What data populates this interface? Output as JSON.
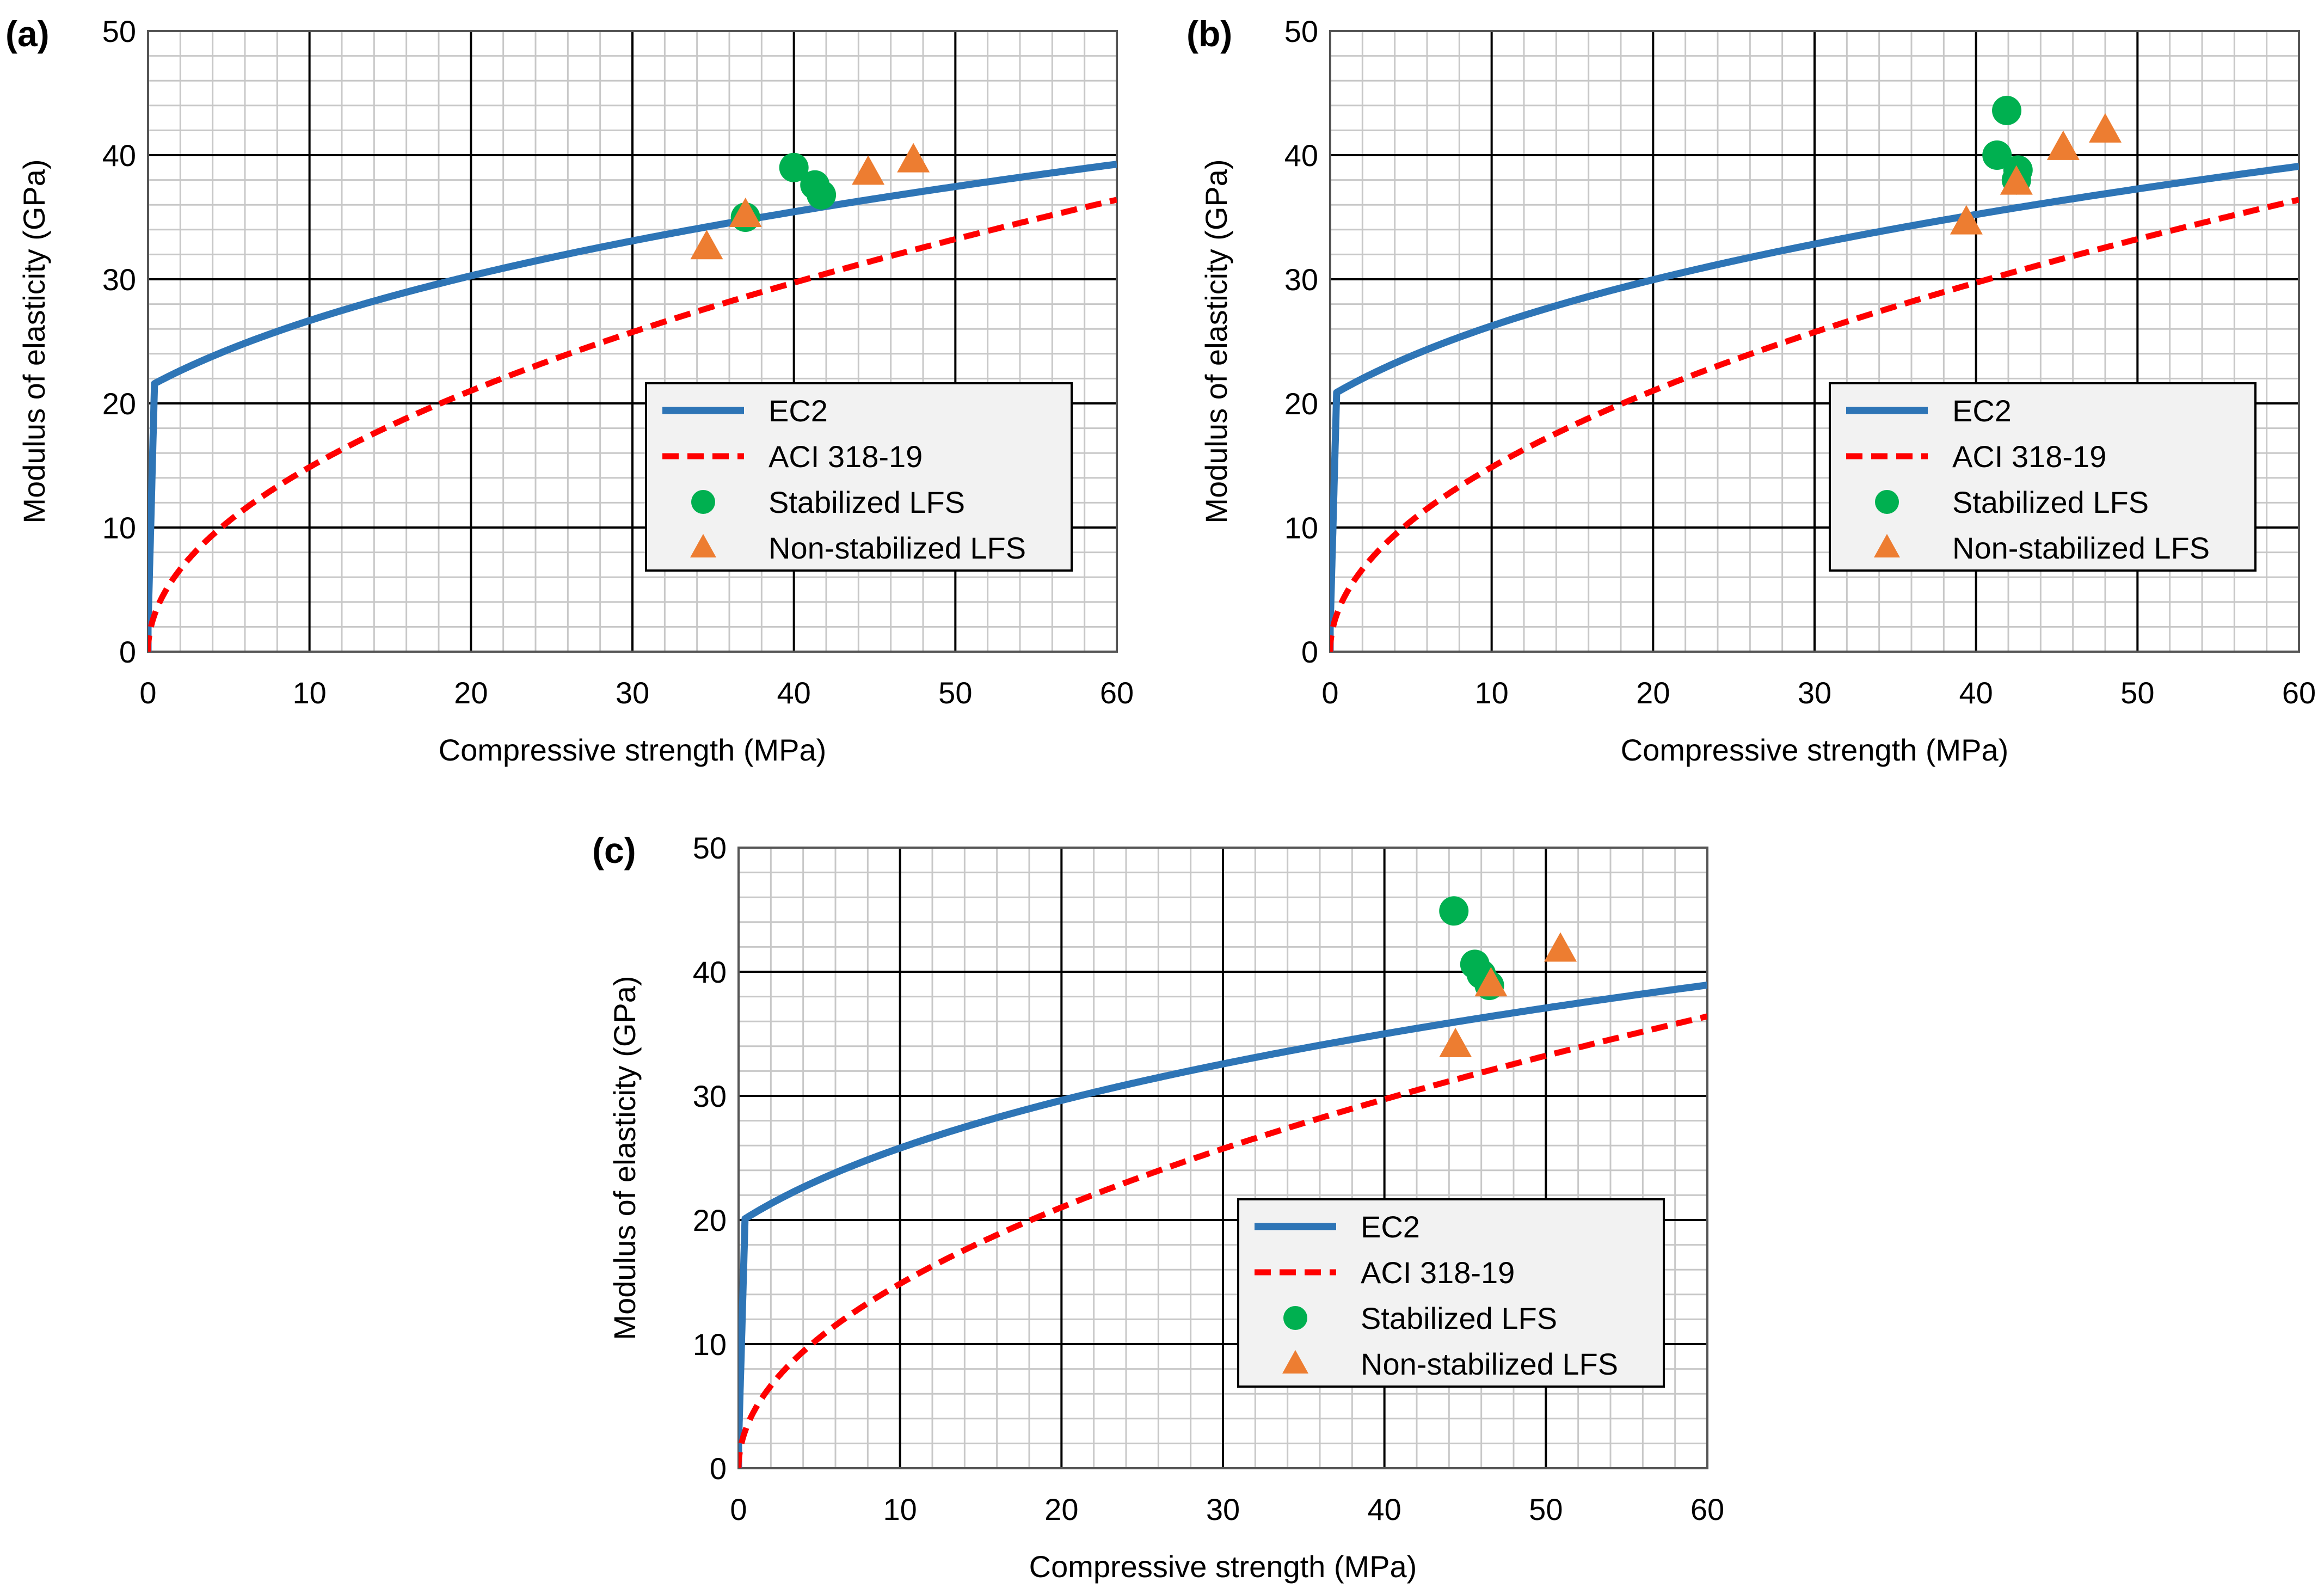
{
  "figure": {
    "panels_meta": "three panels (a), (b), (c)"
  },
  "chart_data": [
    {
      "type": "scatter",
      "panel_label": "(a)",
      "xlabel": "Compressive strength (MPa)",
      "ylabel": "Modulus of elasticity (GPa)",
      "xlim": [
        0,
        60
      ],
      "ylim": [
        0,
        50
      ],
      "xticks": [
        "0",
        "10",
        "20",
        "30",
        "40",
        "50",
        "60"
      ],
      "yticks": [
        "0",
        "10",
        "20",
        "30",
        "40",
        "50"
      ],
      "grid": "major and minor",
      "legend_position": "right",
      "series": [
        {
          "name": "EC2",
          "kind": "line",
          "style": "solid",
          "color": "#2E75B6",
          "shift": 1
        },
        {
          "name": "ACI 318-19",
          "kind": "line",
          "style": "dashed",
          "color": "#FF0000"
        },
        {
          "name": "Stabilized LFS",
          "kind": "scatter",
          "marker": "circle",
          "color": "#00B050",
          "points": [
            [
              37.0,
              35.0
            ],
            [
              40.0,
              39.0
            ],
            [
              41.3,
              37.6
            ],
            [
              41.7,
              36.8
            ]
          ]
        },
        {
          "name": "Non-stabilized LFS",
          "kind": "scatter",
          "marker": "triangle",
          "color": "#ED7D31",
          "points": [
            [
              34.6,
              32.6
            ],
            [
              37.0,
              35.2
            ],
            [
              44.6,
              38.6
            ],
            [
              47.4,
              39.6
            ]
          ]
        }
      ]
    },
    {
      "type": "scatter",
      "panel_label": "(b)",
      "xlabel": "Compressive strength (MPa)",
      "ylabel": "Modulus of elasticity (GPa)",
      "xlim": [
        0,
        60
      ],
      "ylim": [
        0,
        50
      ],
      "xticks": [
        "0",
        "10",
        "20",
        "30",
        "40",
        "50",
        "60"
      ],
      "yticks": [
        "0",
        "10",
        "20",
        "30",
        "40",
        "50"
      ],
      "grid": "major and minor",
      "legend_position": "right",
      "series": [
        {
          "name": "EC2",
          "kind": "line",
          "style": "solid",
          "color": "#2E75B6",
          "shift": 0
        },
        {
          "name": "ACI 318-19",
          "kind": "line",
          "style": "dashed",
          "color": "#FF0000"
        },
        {
          "name": "Stabilized LFS",
          "kind": "scatter",
          "marker": "circle",
          "color": "#00B050",
          "points": [
            [
              41.9,
              43.6
            ],
            [
              41.3,
              40.0
            ],
            [
              42.6,
              38.8
            ],
            [
              42.5,
              38.0
            ]
          ]
        },
        {
          "name": "Non-stabilized LFS",
          "kind": "scatter",
          "marker": "triangle",
          "color": "#ED7D31",
          "points": [
            [
              39.4,
              34.6
            ],
            [
              42.5,
              37.8
            ],
            [
              45.4,
              40.6
            ],
            [
              48.0,
              42.0
            ]
          ]
        }
      ]
    },
    {
      "type": "scatter",
      "panel_label": "(c)",
      "xlabel": "Compressive strength (MPa)",
      "ylabel": "Modulus of elasticity (GPa)",
      "xlim": [
        0,
        60
      ],
      "ylim": [
        0,
        50
      ],
      "xticks": [
        "0",
        "10",
        "20",
        "30",
        "40",
        "50",
        "60"
      ],
      "yticks": [
        "0",
        "10",
        "20",
        "30",
        "40",
        "50"
      ],
      "grid": "major and minor",
      "legend_position": "right",
      "series": [
        {
          "name": "EC2",
          "kind": "line",
          "style": "solid",
          "color": "#2E75B6",
          "shift": -1
        },
        {
          "name": "ACI 318-19",
          "kind": "line",
          "style": "dashed",
          "color": "#FF0000"
        },
        {
          "name": "Stabilized LFS",
          "kind": "scatter",
          "marker": "circle",
          "color": "#00B050",
          "points": [
            [
              44.3,
              44.9
            ],
            [
              45.6,
              40.6
            ],
            [
              46.0,
              39.8
            ],
            [
              46.5,
              38.9
            ]
          ]
        },
        {
          "name": "Non-stabilized LFS",
          "kind": "scatter",
          "marker": "triangle",
          "color": "#ED7D31",
          "points": [
            [
              44.4,
              34.1
            ],
            [
              46.6,
              39.0
            ],
            [
              50.9,
              41.8
            ]
          ]
        }
      ]
    }
  ]
}
